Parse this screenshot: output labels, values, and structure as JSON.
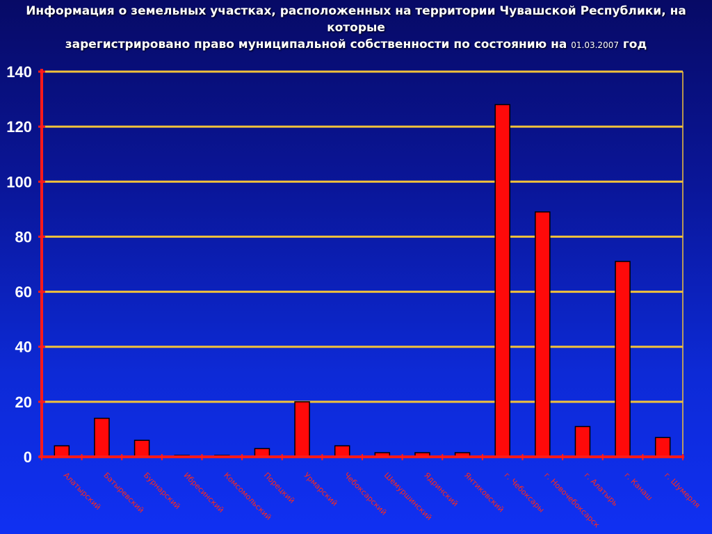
{
  "chart_data": {
    "type": "bar",
    "title": "Информация о земельных участках, расположенных на территории Чувашской Республики, на которые зарегистрировано право муниципальной собственности по состоянию на",
    "title_line1": "Информация о земельных участках, расположенных на территории Чувашской Республики, на которые",
    "title_line2": "зарегистрировано право муниципальной собственности по состоянию на",
    "title_date": "01.03.2007",
    "title_suffix": "год",
    "categories": [
      "Алатырский",
      "Батыревский",
      "Бурнарский",
      "Ибресинский",
      "Комсомольский",
      "Порецкий",
      "Урмарский",
      "Чебоксарский",
      "Шемуршинский",
      "Ядринский",
      "Янтиковский",
      "г. Чебоксары",
      "г. Новочебоксарск",
      "г. Алатырь",
      "г. Канаш",
      "г. Шумерля"
    ],
    "values": [
      4,
      14,
      6,
      0.5,
      0.5,
      3,
      20,
      4,
      1.5,
      1.5,
      1.5,
      128,
      89,
      11,
      71,
      7
    ],
    "ylim": [
      0,
      140
    ],
    "yticks": [
      0,
      20,
      40,
      60,
      80,
      100,
      120,
      140
    ],
    "grid": true,
    "xlabel": "",
    "ylabel": "",
    "colors": {
      "bar": "#ff0a0a",
      "bar_edge": "#000000",
      "axis": "#ff1a1a",
      "grid": "#f2c23a",
      "tick_text": "#ffffff",
      "category_text": "#ff2a1a"
    }
  }
}
